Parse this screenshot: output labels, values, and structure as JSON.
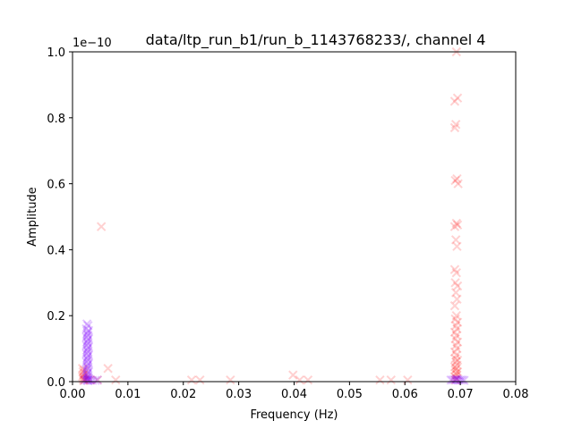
{
  "chart_data": {
    "type": "scatter",
    "title": "data/ltp_run_b1/run_b_1143768233/, channel 4",
    "xlabel": "Frequency (Hz)",
    "ylabel": "Amplitude",
    "y_offset_label": "1e−10",
    "xlim": [
      0.0,
      0.08
    ],
    "ylim": [
      0.0,
      1.0
    ],
    "xticks": [
      0.0,
      0.01,
      0.02,
      0.03,
      0.04,
      0.05,
      0.06,
      0.07,
      0.08
    ],
    "xtick_labels": [
      "0.00",
      "0.01",
      "0.02",
      "0.03",
      "0.04",
      "0.05",
      "0.06",
      "0.07",
      "0.08"
    ],
    "yticks": [
      0.0,
      0.2,
      0.4,
      0.6,
      0.8,
      1.0
    ],
    "ytick_labels": [
      "0.0",
      "0.2",
      "0.4",
      "0.6",
      "0.8",
      "1.0"
    ],
    "grid": false,
    "colors": {
      "red_marker": "#ff0000",
      "purple_marker": "#7f00ff"
    },
    "series": [
      {
        "marker": "x",
        "color": "#ff0000",
        "alpha": 0.18,
        "points": [
          [
            0.0052,
            0.47
          ],
          [
            0.0064,
            0.04
          ],
          [
            0.0078,
            0.005
          ],
          [
            0.0215,
            0.005
          ],
          [
            0.023,
            0.005
          ],
          [
            0.0285,
            0.005
          ],
          [
            0.0398,
            0.02
          ],
          [
            0.041,
            0.005
          ],
          [
            0.0425,
            0.005
          ],
          [
            0.0555,
            0.005
          ],
          [
            0.0575,
            0.005
          ],
          [
            0.0605,
            0.005
          ],
          [
            0.0693,
            1.0
          ],
          [
            0.069,
            0.85
          ],
          [
            0.0695,
            0.86
          ],
          [
            0.0692,
            0.78
          ],
          [
            0.069,
            0.77
          ],
          [
            0.0694,
            0.615
          ],
          [
            0.0691,
            0.61
          ],
          [
            0.0696,
            0.6
          ],
          [
            0.0693,
            0.48
          ],
          [
            0.0695,
            0.475
          ],
          [
            0.069,
            0.47
          ],
          [
            0.0692,
            0.43
          ],
          [
            0.0694,
            0.41
          ],
          [
            0.069,
            0.34
          ],
          [
            0.0693,
            0.33
          ],
          [
            0.0691,
            0.3
          ],
          [
            0.0695,
            0.29
          ],
          [
            0.0692,
            0.27
          ],
          [
            0.0694,
            0.25
          ],
          [
            0.069,
            0.23
          ],
          [
            0.0693,
            0.2
          ],
          [
            0.0691,
            0.19
          ],
          [
            0.0695,
            0.18
          ],
          [
            0.0692,
            0.17
          ],
          [
            0.0694,
            0.16
          ],
          [
            0.069,
            0.15
          ],
          [
            0.0693,
            0.14
          ],
          [
            0.0691,
            0.13
          ],
          [
            0.0695,
            0.12
          ],
          [
            0.0692,
            0.11
          ],
          [
            0.0694,
            0.1
          ],
          [
            0.069,
            0.09
          ],
          [
            0.0693,
            0.08
          ],
          [
            0.0691,
            0.07
          ],
          [
            0.0695,
            0.065
          ],
          [
            0.0692,
            0.06
          ],
          [
            0.0694,
            0.05
          ],
          [
            0.069,
            0.045
          ],
          [
            0.0693,
            0.04
          ],
          [
            0.0691,
            0.035
          ],
          [
            0.0695,
            0.03
          ],
          [
            0.0692,
            0.025
          ],
          [
            0.0694,
            0.02
          ],
          [
            0.069,
            0.015
          ],
          [
            0.0693,
            0.01
          ],
          [
            0.0691,
            0.005
          ],
          [
            0.0018,
            0.04
          ],
          [
            0.0021,
            0.035
          ],
          [
            0.0019,
            0.03
          ],
          [
            0.0022,
            0.025
          ],
          [
            0.002,
            0.02
          ],
          [
            0.0018,
            0.015
          ],
          [
            0.0021,
            0.012
          ],
          [
            0.0019,
            0.008
          ],
          [
            0.0022,
            0.005
          ],
          [
            0.002,
            0.003
          ],
          [
            0.0026,
            0.01
          ],
          [
            0.0031,
            0.005
          ],
          [
            0.0045,
            0.005
          ]
        ]
      },
      {
        "marker": "x",
        "color": "#7f00ff",
        "alpha": 0.22,
        "points": [
          [
            0.0026,
            0.175
          ],
          [
            0.0028,
            0.17
          ],
          [
            0.0025,
            0.16
          ],
          [
            0.0029,
            0.155
          ],
          [
            0.0027,
            0.15
          ],
          [
            0.0026,
            0.145
          ],
          [
            0.0028,
            0.14
          ],
          [
            0.0025,
            0.135
          ],
          [
            0.0029,
            0.13
          ],
          [
            0.0027,
            0.125
          ],
          [
            0.0026,
            0.12
          ],
          [
            0.0028,
            0.115
          ],
          [
            0.0025,
            0.11
          ],
          [
            0.0029,
            0.105
          ],
          [
            0.0027,
            0.1
          ],
          [
            0.0026,
            0.095
          ],
          [
            0.0028,
            0.09
          ],
          [
            0.0025,
            0.085
          ],
          [
            0.0029,
            0.08
          ],
          [
            0.0027,
            0.075
          ],
          [
            0.0026,
            0.07
          ],
          [
            0.0028,
            0.065
          ],
          [
            0.0025,
            0.06
          ],
          [
            0.0029,
            0.055
          ],
          [
            0.0027,
            0.05
          ],
          [
            0.0026,
            0.045
          ],
          [
            0.0028,
            0.04
          ],
          [
            0.0025,
            0.035
          ],
          [
            0.0029,
            0.03
          ],
          [
            0.0027,
            0.025
          ],
          [
            0.0026,
            0.02
          ],
          [
            0.0028,
            0.015
          ],
          [
            0.0025,
            0.012
          ],
          [
            0.0029,
            0.009
          ],
          [
            0.0027,
            0.006
          ],
          [
            0.0026,
            0.004
          ],
          [
            0.0028,
            0.003
          ],
          [
            0.0032,
            0.005
          ],
          [
            0.0036,
            0.004
          ],
          [
            0.0041,
            0.004
          ],
          [
            0.0045,
            0.005
          ],
          [
            0.0022,
            0.005
          ],
          [
            0.0683,
            0.005
          ],
          [
            0.0686,
            0.005
          ],
          [
            0.0689,
            0.006
          ],
          [
            0.0692,
            0.005
          ],
          [
            0.0695,
            0.006
          ],
          [
            0.0698,
            0.005
          ],
          [
            0.0701,
            0.005
          ],
          [
            0.0704,
            0.005
          ],
          [
            0.0707,
            0.004
          ],
          [
            0.0693,
            0.008
          ]
        ]
      }
    ]
  }
}
